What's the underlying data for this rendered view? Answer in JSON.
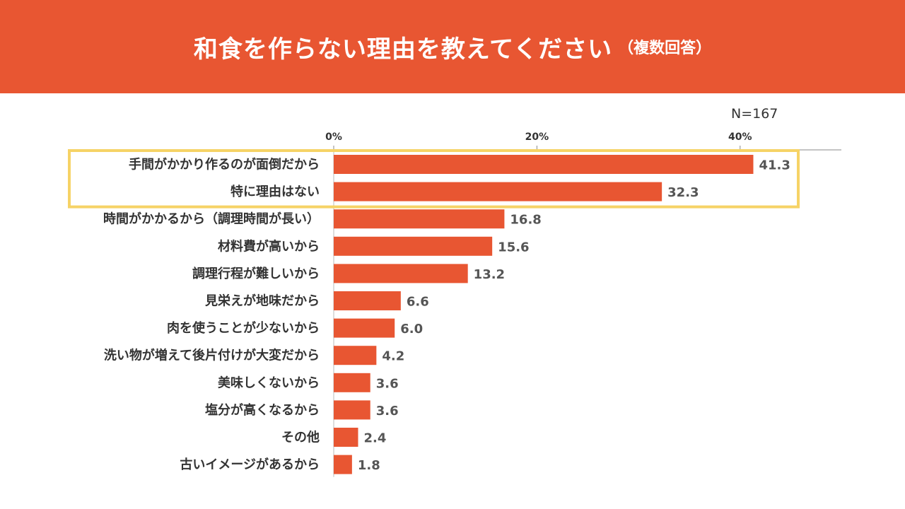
{
  "header": {
    "title": "和食を作らない理由を教えてください",
    "subtitle": "（複数回答）"
  },
  "sample_size": "N=167",
  "colors": {
    "accent": "#e85632",
    "highlight": "#f6d366",
    "text": "#333333"
  },
  "chart_data": {
    "type": "bar",
    "orientation": "horizontal",
    "title": "和食を作らない理由を教えてください（複数回答）",
    "xlabel": "",
    "ylabel": "",
    "xlim": [
      0,
      50
    ],
    "ticks": [
      {
        "value": 0,
        "label": "0%"
      },
      {
        "value": 20,
        "label": "20%"
      },
      {
        "value": 40,
        "label": "40%"
      }
    ],
    "categories": [
      "手間がかかり作るのが面倒だから",
      "特に理由はない",
      "時間がかかるから（調理時間が長い）",
      "材料費が高いから",
      "調理行程が難しいから",
      "見栄えが地味だから",
      "肉を使うことが少ないから",
      "洗い物が増えて後片付けが大変だから",
      "美味しくないから",
      "塩分が高くなるから",
      "その他",
      "古いイメージがあるから"
    ],
    "values": [
      41.3,
      32.3,
      16.8,
      15.6,
      13.2,
      6.6,
      6.0,
      4.2,
      3.6,
      3.6,
      2.4,
      1.8
    ],
    "value_labels": [
      "41.3",
      "32.3",
      "16.8",
      "15.6",
      "13.2",
      "6.6",
      "6.0",
      "4.2",
      "3.6",
      "3.6",
      "2.4",
      "1.8"
    ],
    "highlighted_categories": 2
  }
}
